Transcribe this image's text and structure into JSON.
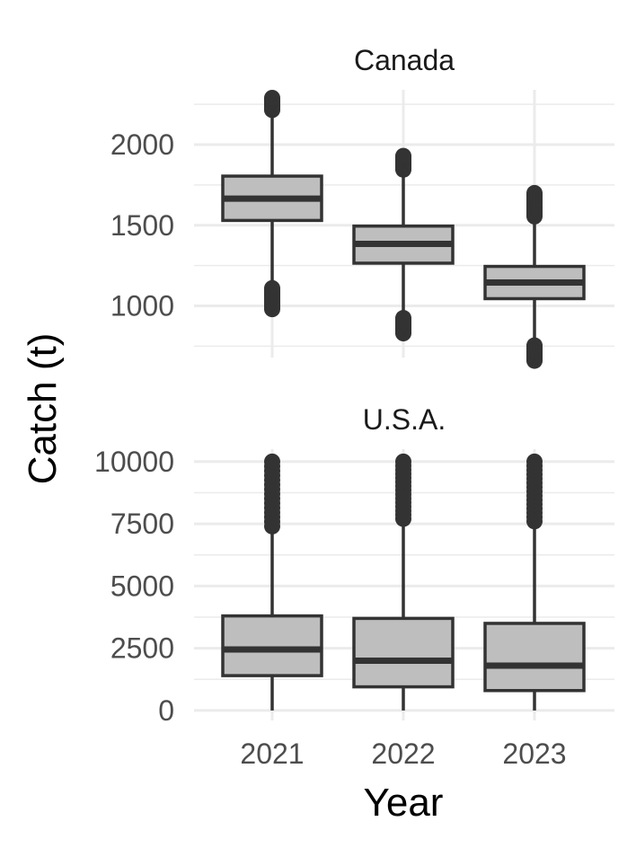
{
  "chart_data": {
    "type": "boxplot",
    "xlabel": "Year",
    "ylabel": "Catch (t)",
    "categories": [
      "2021",
      "2022",
      "2023"
    ],
    "style": {
      "box_fill": "#bebebe",
      "line_color": "#333333",
      "grid_color": "#ebebeb"
    },
    "panels": [
      {
        "name": "Canada",
        "ylim": [
          680,
          2340
        ],
        "yticks": [
          1000,
          1500,
          2000
        ],
        "ytick_labels": [
          "1000",
          "1500",
          "2000"
        ],
        "boxes": [
          {
            "x": "2021",
            "q1": 1530,
            "median": 1665,
            "q3": 1805,
            "whisker_low": 1120,
            "whisker_high": 2210,
            "outliers_low_range": [
              980,
              1110
            ],
            "outliers_high_range": [
              2215,
              2290
            ]
          },
          {
            "x": "2022",
            "q1": 1265,
            "median": 1385,
            "q3": 1495,
            "whisker_low": 930,
            "whisker_high": 1840,
            "outliers_low_range": [
              830,
              925
            ],
            "outliers_high_range": [
              1845,
              1930
            ]
          },
          {
            "x": "2023",
            "q1": 1045,
            "median": 1145,
            "q3": 1245,
            "whisker_low": 760,
            "whisker_high": 1550,
            "outliers_low_range": [
              660,
              755
            ],
            "outliers_high_range": [
              1555,
              1700
            ]
          }
        ]
      },
      {
        "name": "U.S.A.",
        "ylim": [
          -400,
          10500
        ],
        "yticks": [
          0,
          2500,
          5000,
          7500,
          10000
        ],
        "ytick_labels": [
          "0",
          "2500",
          "5000",
          "7500",
          "10000"
        ],
        "boxes": [
          {
            "x": "2021",
            "q1": 1400,
            "median": 2450,
            "q3": 3800,
            "whisker_low": 0,
            "whisker_high": 7400,
            "outliers_low_range": null,
            "outliers_high_range": [
              7400,
              10000
            ]
          },
          {
            "x": "2022",
            "q1": 950,
            "median": 2000,
            "q3": 3700,
            "whisker_low": 0,
            "whisker_high": 7700,
            "outliers_low_range": null,
            "outliers_high_range": [
              7700,
              10000
            ]
          },
          {
            "x": "2023",
            "q1": 800,
            "median": 1800,
            "q3": 3500,
            "whisker_low": 0,
            "whisker_high": 7600,
            "outliers_low_range": null,
            "outliers_high_range": [
              7600,
              10000
            ]
          }
        ]
      }
    ]
  }
}
